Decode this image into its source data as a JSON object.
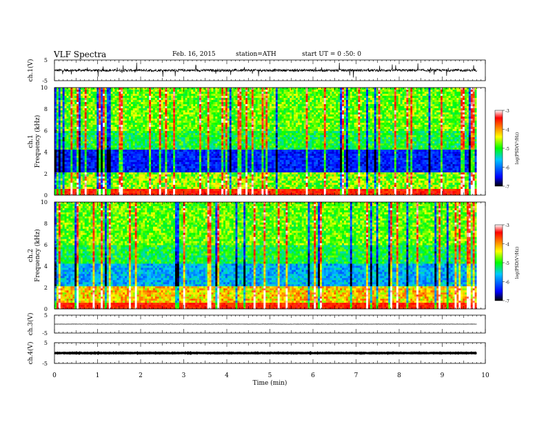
{
  "header": {
    "title": "VLF  Spectra",
    "date": "Feb. 16, 2015",
    "station": "station=ATH",
    "start_ut": "start  UT  =   0 :50: 0"
  },
  "chart_data": [
    {
      "type": "line",
      "name": "ch1-waveform",
      "ylabel": "ch.1(V)",
      "ylim": [
        -5,
        5
      ],
      "yticks": [
        "5",
        "-5"
      ],
      "xlim": [
        0,
        9.8
      ],
      "baseline": 0,
      "noise_amplitude": 1.2
    },
    {
      "type": "heatmap",
      "name": "ch1-spectrogram",
      "ylabel_line1": "ch.1",
      "ylabel_line2": "Frequency  (kHz)",
      "ylim": [
        0,
        10
      ],
      "yticks": [
        "0",
        "2",
        "4",
        "6",
        "8",
        "10"
      ],
      "xlim": [
        0,
        9.8
      ],
      "colorbar": {
        "label": "log(PSD(V²/Hz)",
        "range": [
          -7,
          -3
        ],
        "ticks": [
          "-3",
          "-4",
          "-5",
          "-6",
          "-7"
        ]
      }
    },
    {
      "type": "heatmap",
      "name": "ch2-spectrogram",
      "ylabel_line1": "ch.2",
      "ylabel_line2": "Frequency  (kHz)",
      "ylim": [
        0,
        10
      ],
      "yticks": [
        "0",
        "2",
        "4",
        "6",
        "8",
        "10"
      ],
      "xlim": [
        0,
        9.8
      ],
      "colorbar": {
        "label": "log(PSD(V²/Hz)",
        "range": [
          -7,
          -3
        ],
        "ticks": [
          "-3",
          "-4",
          "-5",
          "-6",
          "-7"
        ]
      }
    },
    {
      "type": "line",
      "name": "ch3-waveform",
      "ylabel": "ch.3(V)",
      "ylim": [
        -5,
        5
      ],
      "yticks": [
        "5",
        "-5"
      ],
      "xlim": [
        0,
        9.8
      ],
      "baseline": 0,
      "noise_amplitude": 0.15
    },
    {
      "type": "line",
      "name": "ch4-waveform",
      "ylabel": "ch.4(V)",
      "ylim": [
        -5,
        5
      ],
      "yticks": [
        "5",
        "-5"
      ],
      "xlim": [
        0,
        9.8
      ],
      "baseline": 0,
      "noise_amplitude": 0.2
    }
  ],
  "x_axis": {
    "label": "Time  (min)",
    "range": [
      0,
      10
    ],
    "ticks": [
      "0",
      "1",
      "2",
      "3",
      "4",
      "5",
      "6",
      "7",
      "8",
      "9",
      "10"
    ]
  }
}
